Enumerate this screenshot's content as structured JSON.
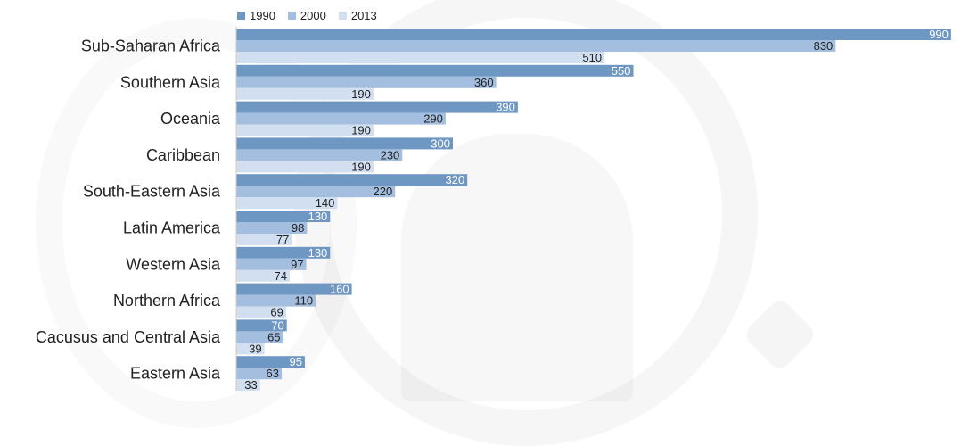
{
  "chart_data": {
    "type": "bar",
    "orientation": "horizontal",
    "categories": [
      "Sub-Saharan Africa",
      "Southern Asia",
      "Oceania",
      "Caribbean",
      "South-Eastern Asia",
      "Latin America",
      "Western Asia",
      "Northern Africa",
      "Cacusus and Central Asia",
      "Eastern Asia"
    ],
    "series": [
      {
        "name": "1990",
        "color": "#6f97c4",
        "values": [
          990,
          550,
          390,
          300,
          320,
          130,
          130,
          160,
          70,
          95
        ]
      },
      {
        "name": "2000",
        "color": "#a4bedf",
        "values": [
          830,
          360,
          290,
          230,
          220,
          98,
          97,
          110,
          65,
          63
        ]
      },
      {
        "name": "2013",
        "color": "#d2dff0",
        "values": [
          510,
          190,
          190,
          190,
          140,
          77,
          74,
          69,
          39,
          33
        ]
      }
    ],
    "xlim": [
      0,
      1000
    ],
    "legend_position": "top",
    "grid": false,
    "title": "",
    "xlabel": "",
    "ylabel": ""
  }
}
